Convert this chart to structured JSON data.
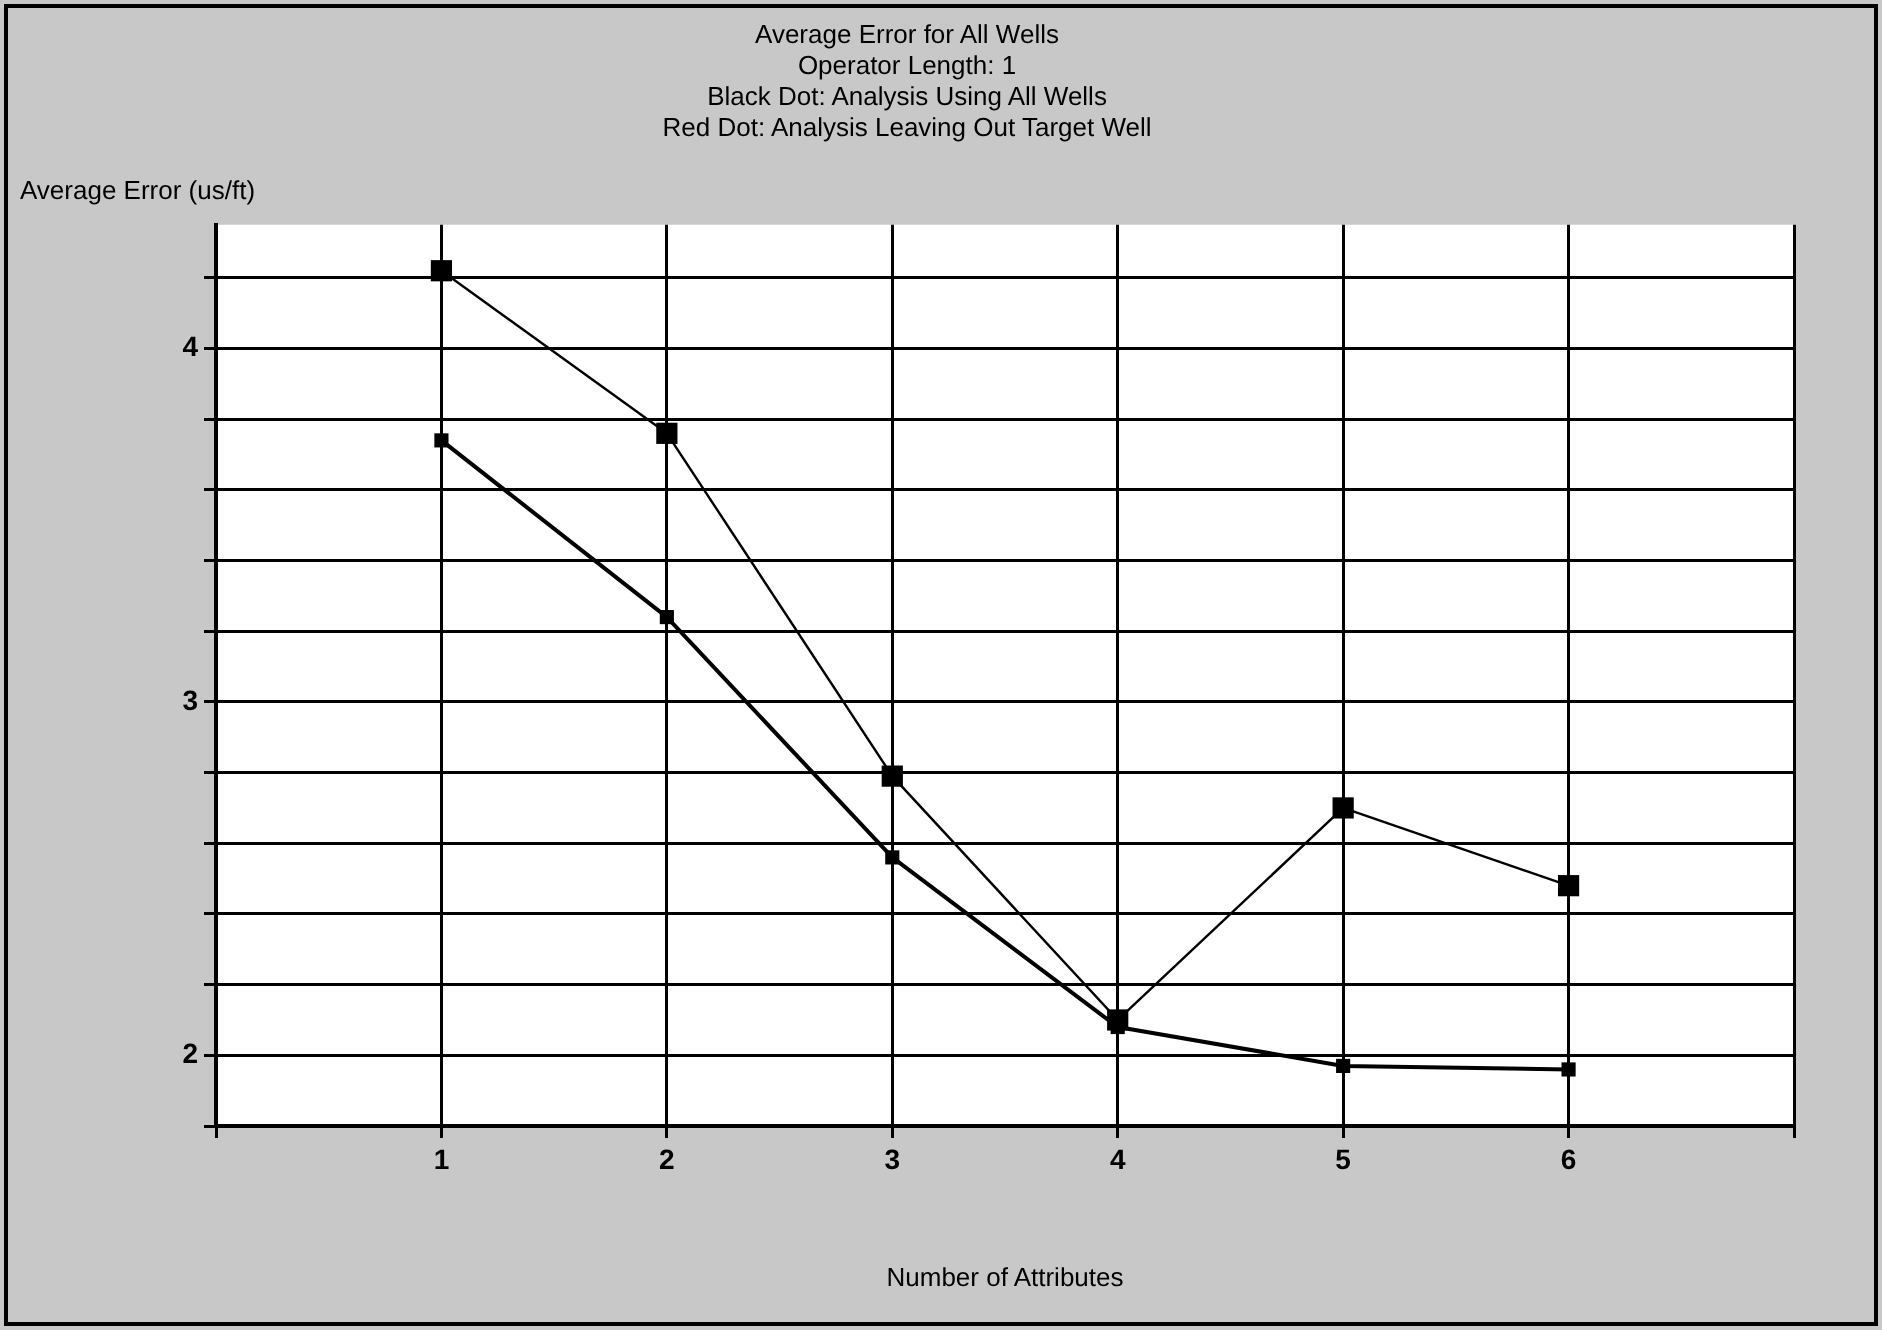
{
  "chart_data": {
    "type": "line",
    "title": "Average Error for All Wells",
    "subtitle": "Operator Length: 1",
    "annotations": [
      "Black Dot: Analysis Using All Wells",
      "Red Dot: Analysis Leaving Out Target Well"
    ],
    "xlabel": "Number of Attributes",
    "ylabel": "Average Error (us/ft)",
    "x": [
      1,
      2,
      3,
      4,
      5,
      6
    ],
    "xlim": [
      0,
      7
    ],
    "xticks": [
      {
        "value": 0,
        "label": null
      },
      1,
      2,
      3,
      4,
      5,
      6,
      {
        "value": 7,
        "label": null
      }
    ],
    "ylim": [
      1.8,
      4.35
    ],
    "yticks": [
      {
        "value": 1.8,
        "label": null
      },
      2,
      {
        "value": 2.2,
        "label": null
      },
      {
        "value": 2.4,
        "label": null
      },
      {
        "value": 2.6,
        "label": null
      },
      {
        "value": 2.8,
        "label": null
      },
      3,
      {
        "value": 3.2,
        "label": null
      },
      {
        "value": 3.4,
        "label": null
      },
      {
        "value": 3.6,
        "label": null
      },
      {
        "value": 3.8,
        "label": null
      },
      4,
      {
        "value": 4.2,
        "label": null
      }
    ],
    "series": [
      {
        "color": "#000000",
        "values": [
          3.74,
          3.24,
          2.56,
          2.08,
          1.97,
          1.96
        ]
      },
      {
        "color": "#000000",
        "values": [
          4.22,
          3.76,
          2.79,
          2.1,
          2.7,
          2.48
        ]
      }
    ],
    "grid": true,
    "marker": "square",
    "line_style": "solid",
    "legend": false
  }
}
